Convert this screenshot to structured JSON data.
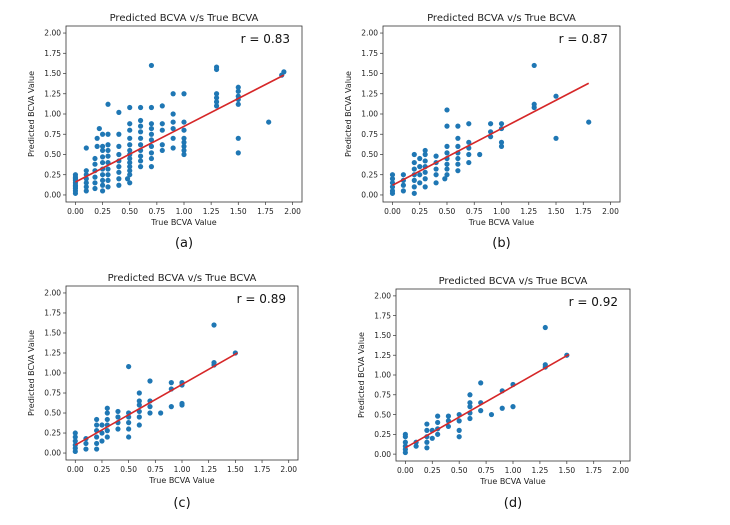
{
  "series_color": "#1f77b4",
  "fit_color": "#d62728",
  "chart_data": [
    {
      "type": "scatter",
      "caption": "(a)",
      "title": "Predicted BCVA v/s True BCVA",
      "xlabel": "True BCVA Value",
      "ylabel": "Predicted BCVA Value",
      "xlim": [
        0,
        2.0
      ],
      "ylim": [
        0,
        2.0
      ],
      "xticks": [
        "0.00",
        "0.25",
        "0.50",
        "0.75",
        "1.00",
        "1.25",
        "1.50",
        "1.75",
        "2.00"
      ],
      "yticks": [
        "0.00",
        "0.25",
        "0.50",
        "0.75",
        "1.00",
        "1.25",
        "1.50",
        "1.75",
        "2.00"
      ],
      "r_label": "r = 0.83",
      "fit_line": [
        [
          0.0,
          0.16
        ],
        [
          1.92,
          1.48
        ]
      ],
      "points": [
        [
          0,
          0.02
        ],
        [
          0,
          0.05
        ],
        [
          0,
          0.08
        ],
        [
          0,
          0.1
        ],
        [
          0,
          0.12
        ],
        [
          0,
          0.15
        ],
        [
          0,
          0.18
        ],
        [
          0,
          0.2
        ],
        [
          0,
          0.22
        ],
        [
          0,
          0.25
        ],
        [
          0.1,
          0.05
        ],
        [
          0.1,
          0.1
        ],
        [
          0.1,
          0.15
        ],
        [
          0.1,
          0.2
        ],
        [
          0.1,
          0.25
        ],
        [
          0.1,
          0.3
        ],
        [
          0.1,
          0.58
        ],
        [
          0.18,
          0.08
        ],
        [
          0.18,
          0.15
        ],
        [
          0.18,
          0.22
        ],
        [
          0.18,
          0.3
        ],
        [
          0.18,
          0.38
        ],
        [
          0.18,
          0.45
        ],
        [
          0.2,
          0.6
        ],
        [
          0.2,
          0.7
        ],
        [
          0.22,
          0.82
        ],
        [
          0.25,
          0.05
        ],
        [
          0.25,
          0.12
        ],
        [
          0.25,
          0.18
        ],
        [
          0.25,
          0.25
        ],
        [
          0.25,
          0.32
        ],
        [
          0.25,
          0.4
        ],
        [
          0.25,
          0.47
        ],
        [
          0.25,
          0.55
        ],
        [
          0.25,
          0.6
        ],
        [
          0.25,
          0.75
        ],
        [
          0.3,
          0.1
        ],
        [
          0.3,
          0.18
        ],
        [
          0.3,
          0.25
        ],
        [
          0.3,
          0.32
        ],
        [
          0.3,
          0.4
        ],
        [
          0.3,
          0.48
        ],
        [
          0.3,
          0.55
        ],
        [
          0.3,
          0.62
        ],
        [
          0.3,
          0.75
        ],
        [
          0.3,
          1.12
        ],
        [
          0.4,
          0.12
        ],
        [
          0.4,
          0.2
        ],
        [
          0.4,
          0.28
        ],
        [
          0.4,
          0.35
        ],
        [
          0.4,
          0.42
        ],
        [
          0.4,
          0.5
        ],
        [
          0.4,
          0.6
        ],
        [
          0.4,
          0.75
        ],
        [
          0.4,
          1.02
        ],
        [
          0.48,
          0.2
        ],
        [
          0.5,
          0.15
        ],
        [
          0.5,
          0.25
        ],
        [
          0.5,
          0.3
        ],
        [
          0.5,
          0.35
        ],
        [
          0.5,
          0.4
        ],
        [
          0.5,
          0.45
        ],
        [
          0.5,
          0.5
        ],
        [
          0.5,
          0.55
        ],
        [
          0.5,
          0.62
        ],
        [
          0.5,
          0.7
        ],
        [
          0.5,
          0.8
        ],
        [
          0.5,
          0.88
        ],
        [
          0.5,
          1.08
        ],
        [
          0.6,
          0.35
        ],
        [
          0.6,
          0.42
        ],
        [
          0.6,
          0.48
        ],
        [
          0.6,
          0.55
        ],
        [
          0.6,
          0.62
        ],
        [
          0.6,
          0.7
        ],
        [
          0.6,
          0.78
        ],
        [
          0.6,
          0.85
        ],
        [
          0.6,
          0.92
        ],
        [
          0.6,
          1.08
        ],
        [
          0.7,
          0.35
        ],
        [
          0.7,
          0.45
        ],
        [
          0.7,
          0.52
        ],
        [
          0.7,
          0.6
        ],
        [
          0.7,
          0.68
        ],
        [
          0.7,
          0.75
        ],
        [
          0.7,
          0.82
        ],
        [
          0.7,
          0.88
        ],
        [
          0.7,
          1.08
        ],
        [
          0.7,
          1.6
        ],
        [
          0.8,
          0.55
        ],
        [
          0.8,
          0.62
        ],
        [
          0.8,
          0.8
        ],
        [
          0.8,
          0.88
        ],
        [
          0.8,
          1.1
        ],
        [
          0.9,
          0.58
        ],
        [
          0.9,
          0.7
        ],
        [
          0.9,
          0.82
        ],
        [
          0.9,
          0.9
        ],
        [
          0.9,
          1.0
        ],
        [
          0.9,
          1.25
        ],
        [
          1.0,
          0.5
        ],
        [
          1.0,
          0.55
        ],
        [
          1.0,
          0.6
        ],
        [
          1.0,
          0.65
        ],
        [
          1.0,
          0.7
        ],
        [
          1.0,
          0.8
        ],
        [
          1.0,
          0.9
        ],
        [
          1.0,
          1.25
        ],
        [
          1.3,
          1.1
        ],
        [
          1.3,
          1.15
        ],
        [
          1.3,
          1.2
        ],
        [
          1.3,
          1.25
        ],
        [
          1.3,
          1.55
        ],
        [
          1.3,
          1.58
        ],
        [
          1.5,
          0.52
        ],
        [
          1.5,
          0.7
        ],
        [
          1.5,
          1.12
        ],
        [
          1.5,
          1.18
        ],
        [
          1.5,
          1.22
        ],
        [
          1.5,
          1.28
        ],
        [
          1.5,
          1.33
        ],
        [
          1.78,
          0.9
        ],
        [
          1.9,
          1.48
        ],
        [
          1.92,
          1.52
        ]
      ]
    },
    {
      "type": "scatter",
      "caption": "(b)",
      "title": "Predicted BCVA v/s True BCVA",
      "xlabel": "True BCVA Value",
      "ylabel": "Predicted BCVA Value",
      "xlim": [
        0,
        2.0
      ],
      "ylim": [
        0,
        2.0
      ],
      "xticks": [
        "0.00",
        "0.25",
        "0.50",
        "0.75",
        "1.00",
        "1.25",
        "1.50",
        "1.75",
        "2.00"
      ],
      "yticks": [
        "0.00",
        "0.25",
        "0.50",
        "0.75",
        "1.00",
        "1.25",
        "1.50",
        "1.75",
        "2.00"
      ],
      "r_label": "r = 0.87",
      "fit_line": [
        [
          0.0,
          0.12
        ],
        [
          1.8,
          1.38
        ]
      ],
      "points": [
        [
          0,
          0.02
        ],
        [
          0,
          0.05
        ],
        [
          0,
          0.1
        ],
        [
          0,
          0.15
        ],
        [
          0,
          0.2
        ],
        [
          0,
          0.25
        ],
        [
          0.1,
          0.05
        ],
        [
          0.1,
          0.12
        ],
        [
          0.1,
          0.18
        ],
        [
          0.1,
          0.25
        ],
        [
          0.2,
          0.02
        ],
        [
          0.2,
          0.1
        ],
        [
          0.2,
          0.18
        ],
        [
          0.2,
          0.25
        ],
        [
          0.2,
          0.32
        ],
        [
          0.2,
          0.4
        ],
        [
          0.2,
          0.5
        ],
        [
          0.25,
          0.15
        ],
        [
          0.25,
          0.25
        ],
        [
          0.25,
          0.35
        ],
        [
          0.25,
          0.45
        ],
        [
          0.3,
          0.1
        ],
        [
          0.3,
          0.2
        ],
        [
          0.3,
          0.28
        ],
        [
          0.3,
          0.35
        ],
        [
          0.3,
          0.42
        ],
        [
          0.3,
          0.5
        ],
        [
          0.3,
          0.55
        ],
        [
          0.4,
          0.15
        ],
        [
          0.4,
          0.25
        ],
        [
          0.4,
          0.32
        ],
        [
          0.4,
          0.4
        ],
        [
          0.4,
          0.48
        ],
        [
          0.48,
          0.2
        ],
        [
          0.5,
          0.25
        ],
        [
          0.5,
          0.32
        ],
        [
          0.5,
          0.38
        ],
        [
          0.5,
          0.45
        ],
        [
          0.5,
          0.52
        ],
        [
          0.5,
          0.6
        ],
        [
          0.5,
          0.85
        ],
        [
          0.5,
          1.05
        ],
        [
          0.6,
          0.3
        ],
        [
          0.6,
          0.38
        ],
        [
          0.6,
          0.45
        ],
        [
          0.6,
          0.52
        ],
        [
          0.6,
          0.6
        ],
        [
          0.6,
          0.7
        ],
        [
          0.6,
          0.85
        ],
        [
          0.7,
          0.4
        ],
        [
          0.7,
          0.5
        ],
        [
          0.7,
          0.58
        ],
        [
          0.7,
          0.65
        ],
        [
          0.7,
          0.88
        ],
        [
          0.8,
          0.5
        ],
        [
          0.9,
          0.72
        ],
        [
          0.9,
          0.78
        ],
        [
          0.9,
          0.88
        ],
        [
          1.0,
          0.6
        ],
        [
          1.0,
          0.65
        ],
        [
          1.0,
          0.82
        ],
        [
          1.0,
          0.88
        ],
        [
          1.3,
          1.08
        ],
        [
          1.3,
          1.12
        ],
        [
          1.3,
          1.6
        ],
        [
          1.5,
          0.7
        ],
        [
          1.5,
          1.22
        ],
        [
          1.8,
          0.9
        ]
      ]
    },
    {
      "type": "scatter",
      "caption": "(c)",
      "title": "Predicted BCVA v/s True BCVA",
      "xlabel": "True BCVA Value",
      "ylabel": "Predicted BCVA Value",
      "xlim": [
        0,
        2.0
      ],
      "ylim": [
        0,
        2.0
      ],
      "xticks": [
        "0.00",
        "0.25",
        "0.50",
        "0.75",
        "1.00",
        "1.25",
        "1.50",
        "1.75",
        "2.00"
      ],
      "yticks": [
        "0.00",
        "0.25",
        "0.50",
        "0.75",
        "1.00",
        "1.25",
        "1.50",
        "1.75",
        "2.00"
      ],
      "r_label": "r = 0.89",
      "fit_line": [
        [
          0.0,
          0.1
        ],
        [
          1.52,
          1.25
        ]
      ],
      "points": [
        [
          0,
          0.02
        ],
        [
          0,
          0.06
        ],
        [
          0,
          0.1
        ],
        [
          0,
          0.15
        ],
        [
          0,
          0.2
        ],
        [
          0,
          0.25
        ],
        [
          0.1,
          0.05
        ],
        [
          0.1,
          0.12
        ],
        [
          0.1,
          0.18
        ],
        [
          0.2,
          0.05
        ],
        [
          0.2,
          0.12
        ],
        [
          0.2,
          0.2
        ],
        [
          0.2,
          0.28
        ],
        [
          0.2,
          0.35
        ],
        [
          0.2,
          0.42
        ],
        [
          0.25,
          0.15
        ],
        [
          0.25,
          0.25
        ],
        [
          0.25,
          0.35
        ],
        [
          0.3,
          0.2
        ],
        [
          0.3,
          0.28
        ],
        [
          0.3,
          0.35
        ],
        [
          0.3,
          0.42
        ],
        [
          0.3,
          0.5
        ],
        [
          0.3,
          0.56
        ],
        [
          0.4,
          0.3
        ],
        [
          0.4,
          0.38
        ],
        [
          0.4,
          0.45
        ],
        [
          0.4,
          0.52
        ],
        [
          0.5,
          0.2
        ],
        [
          0.5,
          0.3
        ],
        [
          0.5,
          0.38
        ],
        [
          0.5,
          0.45
        ],
        [
          0.5,
          0.5
        ],
        [
          0.5,
          1.08
        ],
        [
          0.6,
          0.35
        ],
        [
          0.6,
          0.45
        ],
        [
          0.6,
          0.52
        ],
        [
          0.6,
          0.6
        ],
        [
          0.6,
          0.65
        ],
        [
          0.6,
          0.75
        ],
        [
          0.7,
          0.5
        ],
        [
          0.7,
          0.58
        ],
        [
          0.7,
          0.65
        ],
        [
          0.7,
          0.9
        ],
        [
          0.8,
          0.5
        ],
        [
          0.9,
          0.58
        ],
        [
          0.9,
          0.8
        ],
        [
          0.9,
          0.88
        ],
        [
          1.0,
          0.6
        ],
        [
          1.0,
          0.62
        ],
        [
          1.0,
          0.85
        ],
        [
          1.0,
          0.88
        ],
        [
          1.3,
          1.1
        ],
        [
          1.3,
          1.13
        ],
        [
          1.3,
          1.6
        ],
        [
          1.5,
          1.25
        ]
      ]
    },
    {
      "type": "scatter",
      "caption": "(d)",
      "title": "Predicted BCVA v/s True BCVA",
      "xlabel": "True BCVA Value",
      "ylabel": "Predicted BCVA Value",
      "xlim": [
        0,
        2.0
      ],
      "ylim": [
        0,
        2.0
      ],
      "xticks": [
        "0.00",
        "0.25",
        "0.50",
        "0.75",
        "1.00",
        "1.25",
        "1.50",
        "1.75",
        "2.00"
      ],
      "yticks": [
        "0.00",
        "0.25",
        "0.50",
        "0.75",
        "1.00",
        "1.25",
        "1.50",
        "1.75",
        "2.00"
      ],
      "r_label": "r = 0.92",
      "fit_line": [
        [
          0.0,
          0.08
        ],
        [
          1.52,
          1.26
        ]
      ],
      "points": [
        [
          0,
          0.02
        ],
        [
          0,
          0.06
        ],
        [
          0,
          0.1
        ],
        [
          0,
          0.15
        ],
        [
          0,
          0.22
        ],
        [
          0,
          0.25
        ],
        [
          0.1,
          0.1
        ],
        [
          0.1,
          0.15
        ],
        [
          0.2,
          0.08
        ],
        [
          0.2,
          0.15
        ],
        [
          0.2,
          0.22
        ],
        [
          0.2,
          0.3
        ],
        [
          0.2,
          0.38
        ],
        [
          0.25,
          0.2
        ],
        [
          0.25,
          0.3
        ],
        [
          0.3,
          0.25
        ],
        [
          0.3,
          0.32
        ],
        [
          0.3,
          0.4
        ],
        [
          0.3,
          0.48
        ],
        [
          0.4,
          0.35
        ],
        [
          0.4,
          0.42
        ],
        [
          0.4,
          0.48
        ],
        [
          0.5,
          0.22
        ],
        [
          0.5,
          0.3
        ],
        [
          0.5,
          0.42
        ],
        [
          0.5,
          0.5
        ],
        [
          0.6,
          0.45
        ],
        [
          0.6,
          0.52
        ],
        [
          0.6,
          0.6
        ],
        [
          0.6,
          0.65
        ],
        [
          0.6,
          0.75
        ],
        [
          0.7,
          0.55
        ],
        [
          0.7,
          0.65
        ],
        [
          0.7,
          0.9
        ],
        [
          0.8,
          0.5
        ],
        [
          0.9,
          0.58
        ],
        [
          0.9,
          0.8
        ],
        [
          1.0,
          0.6
        ],
        [
          1.0,
          0.88
        ],
        [
          1.3,
          1.1
        ],
        [
          1.3,
          1.13
        ],
        [
          1.3,
          1.6
        ],
        [
          1.5,
          1.25
        ]
      ]
    }
  ]
}
